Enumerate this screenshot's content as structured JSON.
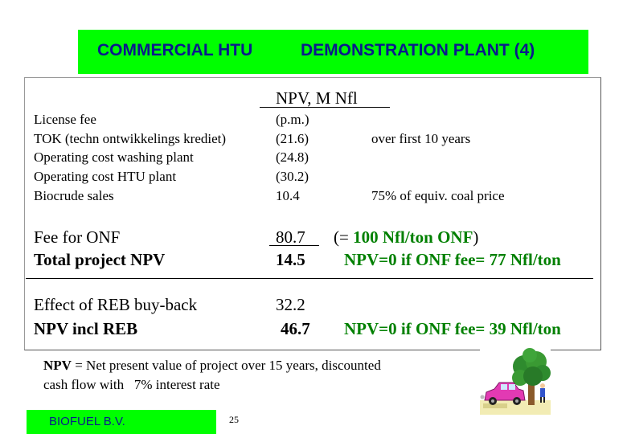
{
  "header": {
    "left_title": "COMMERCIAL HTU",
    "right_title": "DEMONSTRATION PLANT (4)"
  },
  "npv_header": "NPV, M Nfl",
  "small_rows": [
    {
      "label": "License fee",
      "value": "(p.m.)",
      "note": ""
    },
    {
      "label": "TOK (techn ontwikkelings krediet)",
      "value": "(21.6)",
      "note": "over first 10 years"
    },
    {
      "label": "Operating cost washing plant",
      "value": "(24.8)",
      "note": ""
    },
    {
      "label": "Operating cost HTU plant",
      "value": "(30.2)",
      "note": ""
    },
    {
      "label": "Biocrude sales",
      "value": "10.4",
      "note": "75% of equiv. coal price"
    }
  ],
  "fee_row": {
    "label": "Fee for ONF",
    "value": "80.7",
    "note_prefix": "(= ",
    "note_highlight": "100 Nfl/ton ONF",
    "note_suffix": ")"
  },
  "total_row": {
    "label": "Total project NPV",
    "value": "14.5",
    "note": "NPV=0 if ONF fee= 77 Nfl/ton"
  },
  "reb_row": {
    "label": "Effect of REB buy-back",
    "value": "32.2"
  },
  "npv_reb_row": {
    "label": "NPV incl REB",
    "value": "46.7",
    "note": "NPV=0 if ONF fee= 39 Nfl/ton"
  },
  "footnote": {
    "term": "NPV",
    "line1": " = Net present value of project over 15 years, discounted",
    "line2": "cash flow with   7% interest rate"
  },
  "footer": {
    "company": "BIOFUEL B.V.",
    "page_number": "25"
  },
  "colors": {
    "header_bg": "#00ff00",
    "header_text": "#0a1a8c",
    "highlight_text": "#008000"
  }
}
